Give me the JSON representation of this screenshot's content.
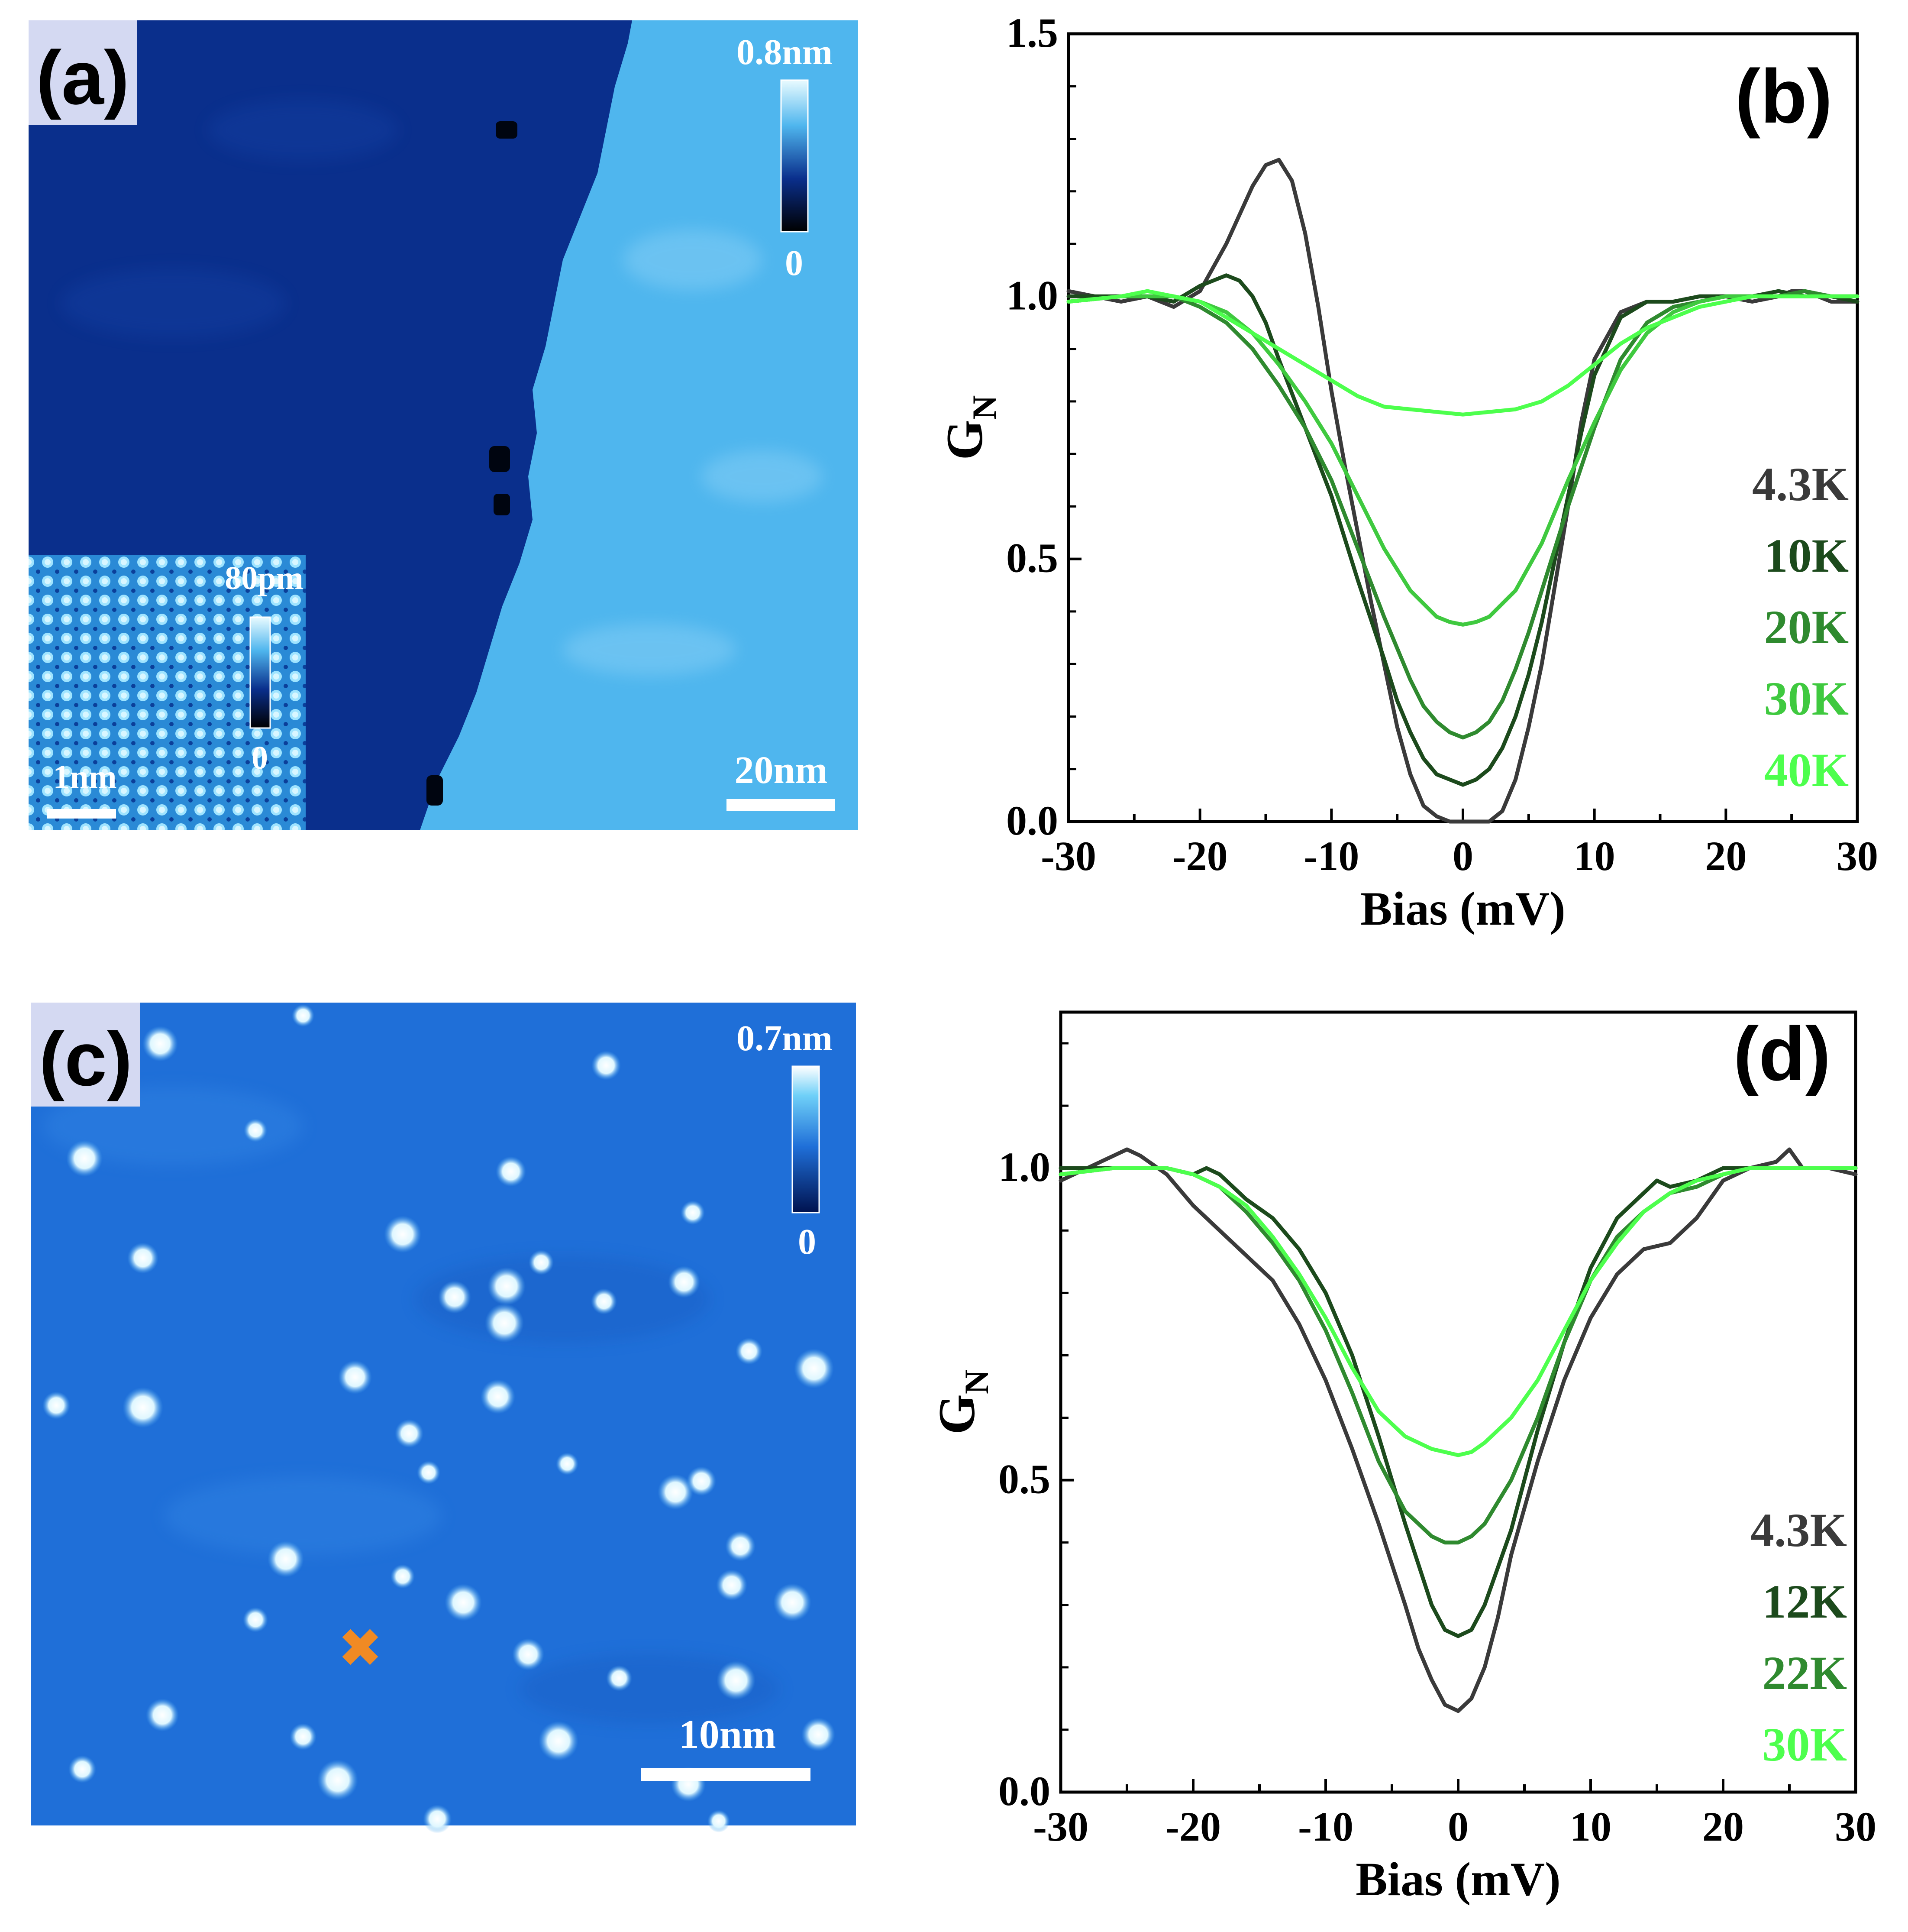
{
  "figure": {
    "panels": [
      {
        "id": "a",
        "label": "(a)",
        "kind": "stm-topography",
        "colorbar": {
          "max_label": "0.8nm",
          "min_label": "0"
        },
        "scalebar": {
          "label": "20nm"
        },
        "inset": {
          "colorbar": {
            "max_label": "80pm",
            "min_label": "0"
          },
          "scalebar": {
            "label": "1nm"
          }
        },
        "colors": {
          "dark_terrace": "#0a2f8c",
          "bright_terrace": "#4fb6ee",
          "defect": "#000510"
        }
      },
      {
        "id": "c",
        "label": "(c)",
        "kind": "stm-topography",
        "colorbar": {
          "max_label": "0.7nm",
          "min_label": "0"
        },
        "scalebar": {
          "label": "10nm"
        },
        "marker": {
          "symbol": "✖",
          "color": "#f08a24"
        },
        "colors": {
          "background": "#1f6fd8",
          "adatom": "#e8fbff"
        }
      }
    ]
  },
  "chart_data": [
    {
      "panel": "(b)",
      "type": "line",
      "xlabel": "Bias (mV)",
      "ylabel": "G",
      "ylabel_subscript": "N",
      "xlim": [
        -30,
        30
      ],
      "ylim": [
        0,
        1.5
      ],
      "xticks": [
        -30,
        -20,
        -10,
        0,
        10,
        20,
        30
      ],
      "xtick_labels": [
        "-30",
        "-20",
        "-10",
        "0",
        "10",
        "20",
        "30"
      ],
      "yticks": [
        0,
        0.5,
        1.0,
        1.5
      ],
      "ytick_labels": [
        "0.0",
        "0.5",
        "1.0",
        "1.5"
      ],
      "grid": false,
      "legend_position": "right",
      "series": [
        {
          "name": "4.3K",
          "color": "#3a3a3a",
          "x": [
            -30,
            -26,
            -24,
            -22,
            -20,
            -18,
            -16,
            -15,
            -14,
            -13,
            -12,
            -11,
            -10,
            -9,
            -8,
            -7,
            -6,
            -5,
            -4,
            -3,
            -2,
            -1,
            0,
            1,
            2,
            3,
            4,
            5,
            6,
            7,
            8,
            9,
            10,
            12,
            14,
            16,
            18,
            20,
            22,
            24,
            25,
            26,
            28,
            30
          ],
          "y": [
            1.01,
            0.99,
            1.0,
            0.98,
            1.01,
            1.1,
            1.21,
            1.25,
            1.26,
            1.22,
            1.12,
            0.98,
            0.82,
            0.68,
            0.55,
            0.42,
            0.3,
            0.18,
            0.09,
            0.03,
            0.01,
            0.0,
            0.0,
            0.0,
            0.0,
            0.02,
            0.08,
            0.18,
            0.3,
            0.45,
            0.6,
            0.76,
            0.88,
            0.97,
            0.99,
            0.99,
            1.0,
            1.0,
            0.99,
            1.0,
            1.01,
            1.01,
            0.99,
            0.99
          ]
        },
        {
          "name": "10K",
          "color": "#1c4a1c",
          "x": [
            -30,
            -26,
            -24,
            -22,
            -20,
            -19,
            -18,
            -17,
            -16,
            -15,
            -14,
            -12,
            -10,
            -8,
            -6,
            -5,
            -4,
            -3,
            -2,
            -1,
            0,
            1,
            2,
            3,
            4,
            5,
            6,
            7,
            8,
            9,
            10,
            12,
            14,
            16,
            18,
            20,
            22,
            24,
            26,
            28,
            30
          ],
          "y": [
            1.0,
            1.0,
            1.0,
            0.99,
            1.02,
            1.03,
            1.04,
            1.03,
            1.0,
            0.95,
            0.88,
            0.75,
            0.62,
            0.46,
            0.31,
            0.23,
            0.17,
            0.12,
            0.09,
            0.08,
            0.07,
            0.08,
            0.1,
            0.14,
            0.2,
            0.28,
            0.38,
            0.5,
            0.62,
            0.74,
            0.85,
            0.96,
            0.99,
            0.99,
            1.0,
            1.0,
            1.0,
            1.01,
            1.0,
            1.0,
            0.99
          ]
        },
        {
          "name": "20K",
          "color": "#2f8a2f",
          "x": [
            -30,
            -26,
            -24,
            -22,
            -20,
            -18,
            -16,
            -14,
            -12,
            -10,
            -8,
            -6,
            -4,
            -3,
            -2,
            -1,
            0,
            1,
            2,
            3,
            4,
            5,
            6,
            8,
            10,
            12,
            14,
            16,
            18,
            20,
            22,
            24,
            26,
            28,
            30
          ],
          "y": [
            0.99,
            1.0,
            1.0,
            1.0,
            0.98,
            0.95,
            0.9,
            0.83,
            0.75,
            0.65,
            0.52,
            0.39,
            0.27,
            0.22,
            0.19,
            0.17,
            0.16,
            0.17,
            0.19,
            0.23,
            0.29,
            0.36,
            0.44,
            0.6,
            0.75,
            0.88,
            0.95,
            0.98,
            0.99,
            1.0,
            1.0,
            1.0,
            1.01,
            1.0,
            1.0
          ]
        },
        {
          "name": "30K",
          "color": "#3fc93f",
          "x": [
            -30,
            -26,
            -24,
            -22,
            -20,
            -18,
            -16,
            -14,
            -12,
            -10,
            -8,
            -6,
            -4,
            -2,
            -1,
            0,
            1,
            2,
            4,
            6,
            8,
            10,
            12,
            14,
            16,
            18,
            20,
            22,
            24,
            26,
            28,
            30
          ],
          "y": [
            0.99,
            1.0,
            1.0,
            1.0,
            0.99,
            0.97,
            0.93,
            0.87,
            0.8,
            0.72,
            0.62,
            0.52,
            0.44,
            0.39,
            0.38,
            0.375,
            0.38,
            0.39,
            0.44,
            0.53,
            0.65,
            0.76,
            0.86,
            0.93,
            0.97,
            0.99,
            1.0,
            1.0,
            1.0,
            1.0,
            1.0,
            1.0
          ]
        },
        {
          "name": "40K",
          "color": "#4dff4d",
          "x": [
            -30,
            -26,
            -24,
            -22,
            -20,
            -18,
            -16,
            -14,
            -12,
            -10,
            -8,
            -6,
            -4,
            -2,
            0,
            2,
            4,
            6,
            8,
            10,
            12,
            14,
            16,
            18,
            20,
            22,
            24,
            26,
            28,
            30
          ],
          "y": [
            0.99,
            1.0,
            1.01,
            1.0,
            0.99,
            0.96,
            0.93,
            0.9,
            0.87,
            0.84,
            0.81,
            0.79,
            0.785,
            0.78,
            0.775,
            0.78,
            0.785,
            0.8,
            0.83,
            0.87,
            0.91,
            0.94,
            0.96,
            0.98,
            0.99,
            1.0,
            1.0,
            1.0,
            1.0,
            1.0
          ]
        }
      ]
    },
    {
      "panel": "(d)",
      "type": "line",
      "xlabel": "Bias (mV)",
      "ylabel": "G",
      "ylabel_subscript": "N",
      "xlim": [
        -30,
        30
      ],
      "ylim": [
        0,
        1.25
      ],
      "xticks": [
        -30,
        -20,
        -10,
        0,
        10,
        20,
        30
      ],
      "xtick_labels": [
        "-30",
        "-20",
        "-10",
        "0",
        "10",
        "20",
        "30"
      ],
      "yticks": [
        0,
        0.5,
        1.0
      ],
      "ytick_labels": [
        "0.0",
        "0.5",
        "1.0"
      ],
      "grid": false,
      "legend_position": "right",
      "series": [
        {
          "name": "4.3K",
          "color": "#3a3a3a",
          "x": [
            -30,
            -28,
            -26,
            -25,
            -24,
            -22,
            -20,
            -18,
            -16,
            -14,
            -12,
            -10,
            -8,
            -6,
            -4,
            -3,
            -2,
            -1,
            0,
            1,
            2,
            3,
            4,
            6,
            8,
            10,
            12,
            14,
            16,
            18,
            20,
            22,
            24,
            25,
            26,
            28,
            30
          ],
          "y": [
            0.98,
            1.0,
            1.02,
            1.03,
            1.02,
            0.99,
            0.94,
            0.9,
            0.86,
            0.82,
            0.75,
            0.66,
            0.55,
            0.43,
            0.3,
            0.23,
            0.18,
            0.14,
            0.13,
            0.15,
            0.2,
            0.28,
            0.38,
            0.53,
            0.66,
            0.76,
            0.83,
            0.87,
            0.88,
            0.92,
            0.98,
            1.0,
            1.01,
            1.03,
            1.0,
            1.0,
            0.99
          ]
        },
        {
          "name": "12K",
          "color": "#1c4a1c",
          "x": [
            -30,
            -28,
            -26,
            -24,
            -22,
            -20,
            -19,
            -18,
            -16,
            -14,
            -12,
            -10,
            -8,
            -6,
            -4,
            -2,
            -1,
            0,
            1,
            2,
            4,
            6,
            8,
            10,
            12,
            14,
            15,
            16,
            18,
            20,
            22,
            24,
            26,
            28,
            30
          ],
          "y": [
            1.0,
            1.0,
            1.0,
            1.0,
            1.0,
            0.99,
            1.0,
            0.99,
            0.95,
            0.92,
            0.87,
            0.8,
            0.7,
            0.57,
            0.43,
            0.3,
            0.26,
            0.25,
            0.26,
            0.3,
            0.42,
            0.58,
            0.72,
            0.84,
            0.92,
            0.96,
            0.98,
            0.97,
            0.98,
            1.0,
            1.0,
            1.0,
            1.0,
            1.0,
            1.0
          ]
        },
        {
          "name": "22K",
          "color": "#2f8a2f",
          "x": [
            -30,
            -26,
            -24,
            -22,
            -20,
            -18,
            -16,
            -14,
            -12,
            -10,
            -8,
            -6,
            -4,
            -2,
            -1,
            0,
            1,
            2,
            4,
            6,
            8,
            10,
            12,
            14,
            16,
            18,
            20,
            22,
            24,
            26,
            28,
            30
          ],
          "y": [
            0.99,
            1.0,
            1.0,
            1.0,
            0.99,
            0.97,
            0.93,
            0.88,
            0.82,
            0.74,
            0.64,
            0.53,
            0.45,
            0.41,
            0.4,
            0.4,
            0.41,
            0.43,
            0.5,
            0.6,
            0.72,
            0.82,
            0.89,
            0.93,
            0.96,
            0.97,
            0.99,
            1.0,
            1.0,
            1.0,
            1.0,
            1.0
          ]
        },
        {
          "name": "30K",
          "color": "#4dff4d",
          "x": [
            -30,
            -26,
            -24,
            -22,
            -20,
            -18,
            -16,
            -14,
            -12,
            -10,
            -8,
            -6,
            -4,
            -2,
            -1,
            0,
            1,
            2,
            4,
            6,
            8,
            10,
            12,
            14,
            16,
            18,
            20,
            22,
            24,
            26,
            28,
            30
          ],
          "y": [
            0.99,
            1.0,
            1.0,
            1.0,
            0.99,
            0.97,
            0.94,
            0.89,
            0.83,
            0.76,
            0.68,
            0.61,
            0.57,
            0.55,
            0.545,
            0.54,
            0.545,
            0.56,
            0.6,
            0.66,
            0.74,
            0.82,
            0.88,
            0.93,
            0.96,
            0.98,
            0.99,
            1.0,
            1.0,
            1.0,
            1.0,
            1.0
          ]
        }
      ]
    }
  ]
}
